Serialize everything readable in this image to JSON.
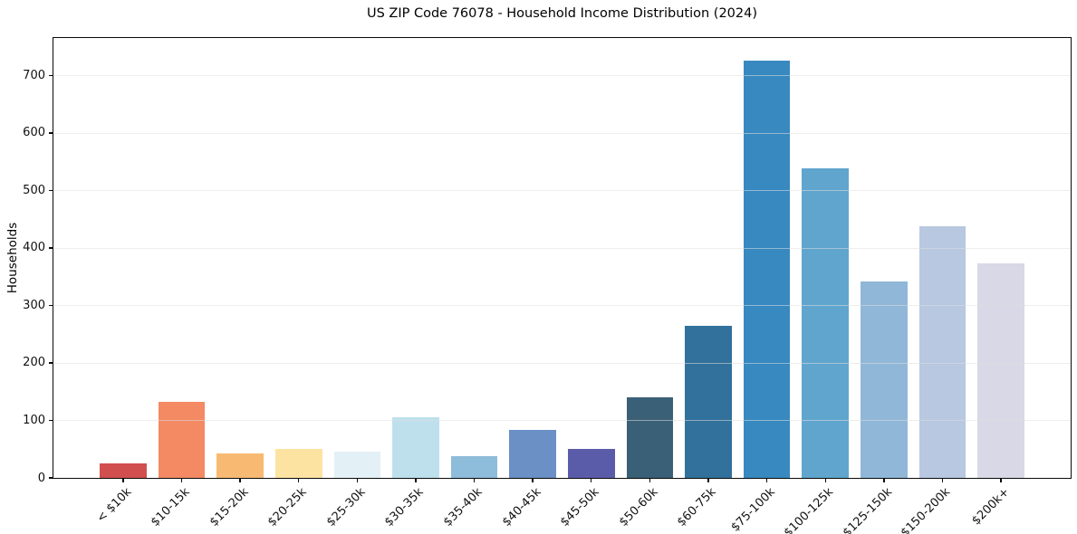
{
  "header": {
    "title": "US ZIP Code 76078 - Household Income Distribution (2024)"
  },
  "chart_data": {
    "type": "bar",
    "title": "US ZIP Code 76078 - Household Income Distribution (2024)",
    "xlabel": "",
    "ylabel": "Households",
    "categories": [
      "< $10k",
      "$10-15k",
      "$15-20k",
      "$20-25k",
      "$25-30k",
      "$30-35k",
      "$35-40k",
      "$40-45k",
      "$45-50k",
      "$50-60k",
      "$60-75k",
      "$75-100k",
      "$100-125k",
      "$125-150k",
      "$150-200k",
      "$200k+"
    ],
    "values": [
      25,
      132,
      42,
      50,
      45,
      106,
      38,
      84,
      51,
      140,
      264,
      725,
      538,
      342,
      437,
      373
    ],
    "bar_colors": [
      "#d24f4f",
      "#f38a63",
      "#f8ba72",
      "#fde3a1",
      "#e3f1f6",
      "#bee0ec",
      "#8ebcdb",
      "#6a90c5",
      "#5b5ca9",
      "#3a6077",
      "#31719b",
      "#3789c0",
      "#60a5ce",
      "#90b7d8",
      "#b7c8e0",
      "#d8d8e6"
    ],
    "ylim": [
      0,
      765
    ],
    "yticks": [
      0,
      100,
      200,
      300,
      400,
      500,
      600,
      700
    ],
    "grid": true,
    "grid_axis": "y",
    "legend": null,
    "x_tick_rotation_deg": 45
  }
}
